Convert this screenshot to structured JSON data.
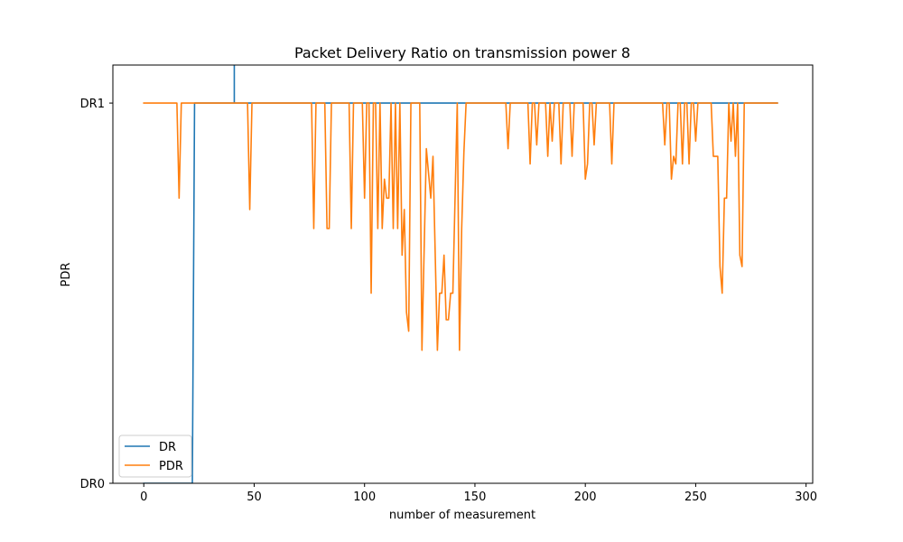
{
  "chart_data": {
    "type": "line",
    "title": "Packet Delivery Ratio on transmission power 8",
    "xlabel": "number of measurement",
    "ylabel": "PDR",
    "xlim": [
      -14,
      303
    ],
    "ylim": [
      0,
      1.1
    ],
    "xticks": [
      0,
      50,
      100,
      150,
      200,
      250,
      300
    ],
    "yticks": [
      {
        "value": 0,
        "label": "DR0"
      },
      {
        "value": 1,
        "label": "DR1"
      }
    ],
    "grid": false,
    "legend_position": "lower-left",
    "series": [
      {
        "name": "DR",
        "color": "#1f77b4",
        "points": [
          [
            0,
            0
          ],
          [
            22,
            0
          ],
          [
            23,
            1
          ],
          [
            41,
            1
          ],
          [
            41,
            1.1
          ],
          [
            41,
            1
          ],
          [
            287,
            1
          ]
        ]
      },
      {
        "name": "PDR",
        "color": "#ff7f0e",
        "points": [
          [
            0,
            1
          ],
          [
            15,
            1
          ],
          [
            16,
            0.75
          ],
          [
            17,
            1
          ],
          [
            47,
            1
          ],
          [
            48,
            0.72
          ],
          [
            49,
            1
          ],
          [
            76,
            1
          ],
          [
            77,
            0.67
          ],
          [
            78,
            1
          ],
          [
            82,
            1
          ],
          [
            83,
            0.67
          ],
          [
            84,
            0.67
          ],
          [
            85,
            1
          ],
          [
            93,
            1
          ],
          [
            94,
            0.67
          ],
          [
            95,
            1
          ],
          [
            99,
            1
          ],
          [
            100,
            0.75
          ],
          [
            101,
            1
          ],
          [
            102,
            1
          ],
          [
            103,
            0.5
          ],
          [
            104,
            1
          ],
          [
            105,
            1
          ],
          [
            106,
            0.67
          ],
          [
            107,
            1
          ],
          [
            108,
            0.67
          ],
          [
            109,
            0.8
          ],
          [
            110,
            0.75
          ],
          [
            111,
            0.75
          ],
          [
            112,
            1
          ],
          [
            113,
            0.67
          ],
          [
            114,
            1
          ],
          [
            115,
            0.67
          ],
          [
            116,
            1
          ],
          [
            117,
            0.6
          ],
          [
            118,
            0.72
          ],
          [
            119,
            0.45
          ],
          [
            120,
            0.4
          ],
          [
            121,
            1
          ],
          [
            125,
            1
          ],
          [
            126,
            0.35
          ],
          [
            128,
            0.88
          ],
          [
            130,
            0.75
          ],
          [
            131,
            0.86
          ],
          [
            133,
            0.35
          ],
          [
            134,
            0.5
          ],
          [
            135,
            0.5
          ],
          [
            136,
            0.6
          ],
          [
            137,
            0.43
          ],
          [
            138,
            0.43
          ],
          [
            139,
            0.5
          ],
          [
            140,
            0.5
          ],
          [
            141,
            0.75
          ],
          [
            142,
            1
          ],
          [
            143,
            0.35
          ],
          [
            144,
            0.67
          ],
          [
            145,
            0.87
          ],
          [
            146,
            1
          ],
          [
            164,
            1
          ],
          [
            165,
            0.88
          ],
          [
            166,
            1
          ],
          [
            174,
            1
          ],
          [
            175,
            0.84
          ],
          [
            176,
            1
          ],
          [
            177,
            1
          ],
          [
            178,
            0.89
          ],
          [
            179,
            1
          ],
          [
            182,
            1
          ],
          [
            183,
            0.86
          ],
          [
            184,
            1
          ],
          [
            185,
            0.9
          ],
          [
            186,
            1
          ],
          [
            188,
            1
          ],
          [
            189,
            0.84
          ],
          [
            190,
            1
          ],
          [
            193,
            1
          ],
          [
            194,
            0.86
          ],
          [
            195,
            1
          ],
          [
            199,
            1
          ],
          [
            200,
            0.8
          ],
          [
            201,
            0.84
          ],
          [
            202,
            1
          ],
          [
            203,
            1
          ],
          [
            204,
            0.89
          ],
          [
            205,
            1
          ],
          [
            211,
            1
          ],
          [
            212,
            0.84
          ],
          [
            213,
            1
          ],
          [
            235,
            1
          ],
          [
            236,
            0.89
          ],
          [
            237,
            1
          ],
          [
            238,
            1
          ],
          [
            239,
            0.8
          ],
          [
            240,
            0.86
          ],
          [
            241,
            0.84
          ],
          [
            242,
            1
          ],
          [
            243,
            1
          ],
          [
            244,
            0.84
          ],
          [
            245,
            1
          ],
          [
            246,
            1
          ],
          [
            247,
            0.84
          ],
          [
            248,
            1
          ],
          [
            249,
            1
          ],
          [
            250,
            0.9
          ],
          [
            251,
            1
          ],
          [
            257,
            1
          ],
          [
            258,
            0.86
          ],
          [
            259,
            0.86
          ],
          [
            260,
            0.86
          ],
          [
            261,
            0.57
          ],
          [
            262,
            0.5
          ],
          [
            263,
            0.75
          ],
          [
            264,
            0.75
          ],
          [
            265,
            1
          ],
          [
            266,
            0.9
          ],
          [
            267,
            1
          ],
          [
            268,
            0.86
          ],
          [
            269,
            1
          ],
          [
            270,
            0.6
          ],
          [
            271,
            0.57
          ],
          [
            272,
            1
          ],
          [
            287,
            1
          ]
        ]
      }
    ]
  }
}
